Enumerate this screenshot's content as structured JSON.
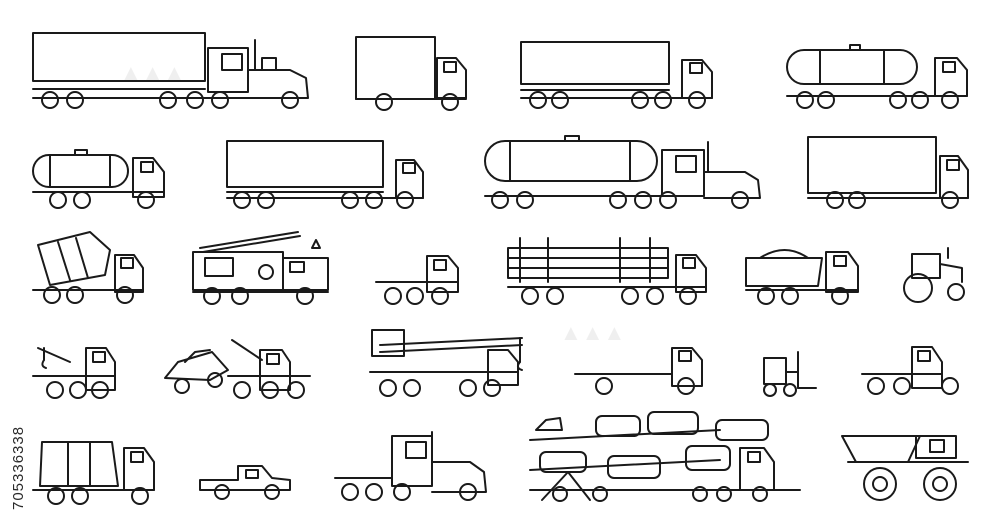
{
  "watermark_id": "705336338",
  "stroke_color": "#1a1a1a",
  "background_color": "#ffffff",
  "icons": [
    "semi-truck-box-trailer-icon",
    "box-truck-icon",
    "box-trailer-truck-icon",
    "tanker-trailer-truck-icon",
    "tank-truck-icon",
    "long-box-trailer-truck-icon",
    "long-tanker-semi-truck-icon",
    "large-box-truck-icon",
    "cement-mixer-truck-icon",
    "fire-engine-icon",
    "tractor-unit-icon",
    "logging-truck-icon",
    "dump-truck-icon",
    "farm-tractor-icon",
    "tow-truck-icon",
    "tow-truck-with-car-icon",
    "mobile-crane-truck-icon",
    "flatbed-truck-icon",
    "forklift-icon",
    "cab-chassis-truck-icon",
    "garbage-truck-icon",
    "pickup-truck-icon",
    "semi-tractor-icon",
    "car-carrier-truck-icon",
    "mining-dump-truck-icon"
  ]
}
